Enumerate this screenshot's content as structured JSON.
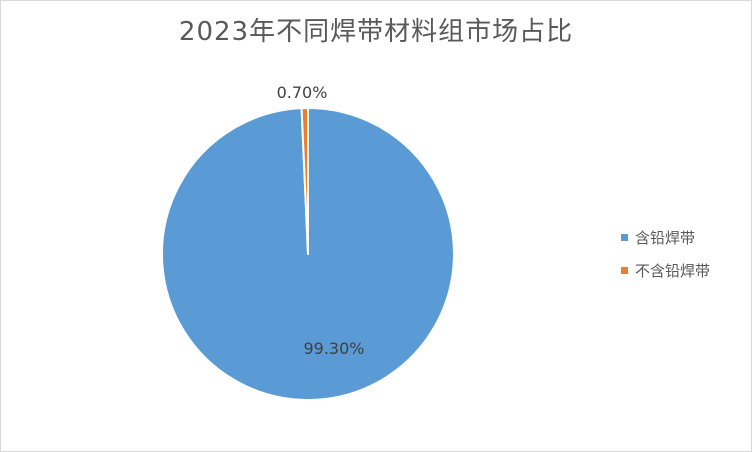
{
  "chart_title": "2023年不同焊带材料组市场占比",
  "chart_data": {
    "type": "pie",
    "title": "2023年不同焊带材料组市场占比",
    "categories": [
      "含铅焊带",
      "不含铅焊带"
    ],
    "values": [
      99.3,
      0.7
    ],
    "data_labels": [
      "99.30%",
      "0.70%"
    ],
    "colors": [
      "#5B9BD5",
      "#ED7D31"
    ],
    "start_angle_deg": 0,
    "direction": "clockwise",
    "legend_position": "right",
    "slice_border_color": "#FFFFFF",
    "title_color": "#595959",
    "label_color": "#404040"
  },
  "legend": {
    "items": [
      {
        "label": "含铅焊带",
        "color": "#5B9BD5"
      },
      {
        "label": "不含铅焊带",
        "color": "#ED7D31"
      }
    ]
  }
}
